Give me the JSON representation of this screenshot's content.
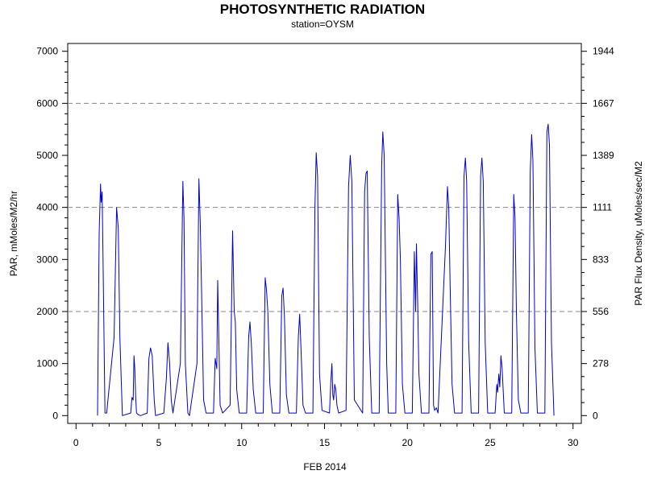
{
  "chart_data": {
    "type": "line",
    "title": "PHOTOSYNTHETIC RADIATION",
    "subtitle": "station=OYSM",
    "xlabel": "FEB 2014",
    "ylabel": "PAR, mMoles/M2/hr",
    "y2label": "PAR Flux Density, uMoles/sec/M2",
    "xlim": [
      -0.5,
      30.5
    ],
    "ylim": [
      -150,
      7150
    ],
    "x_ticks": [
      0,
      5,
      10,
      15,
      20,
      25,
      30
    ],
    "x_tick_labels": [
      "0",
      "5",
      "10",
      "15",
      "20",
      "25",
      "30"
    ],
    "y_ticks": [
      0,
      1000,
      2000,
      3000,
      4000,
      5000,
      6000,
      7000
    ],
    "y_tick_labels": [
      "0",
      "1000",
      "2000",
      "3000",
      "4000",
      "5000",
      "6000",
      "7000"
    ],
    "y2_ticks": [
      0,
      1000,
      2000,
      3000,
      4000,
      5000,
      6000,
      7000
    ],
    "y2_tick_labels": [
      "0",
      "278",
      "556",
      "833",
      "1111",
      "1389",
      "1667",
      "1944"
    ],
    "reference_lines": [
      2000,
      4000,
      6000
    ],
    "grid": false,
    "series": [
      {
        "color": "#0000cc",
        "x": [
          1.3,
          1.4,
          1.48,
          1.52,
          1.58,
          1.63,
          1.75,
          1.85,
          2.3,
          2.45,
          2.55,
          2.65,
          2.8,
          3.3,
          3.38,
          3.45,
          3.5,
          3.55,
          3.6,
          3.65,
          3.75,
          3.9,
          4.3,
          4.4,
          4.5,
          4.6,
          4.72,
          4.8,
          5.3,
          5.45,
          5.55,
          5.65,
          5.75,
          5.85,
          6.3,
          6.45,
          6.52,
          6.6,
          6.75,
          6.85,
          7.3,
          7.42,
          7.5,
          7.58,
          7.7,
          7.85,
          8.3,
          8.4,
          8.5,
          8.55,
          8.62,
          8.7,
          8.85,
          9.3,
          9.45,
          9.5,
          9.55,
          9.62,
          9.7,
          9.85,
          10.3,
          10.42,
          10.5,
          10.58,
          10.7,
          10.85,
          11.3,
          11.42,
          11.5,
          11.58,
          11.7,
          11.85,
          12.3,
          12.42,
          12.5,
          12.58,
          12.7,
          12.85,
          13.3,
          13.42,
          13.5,
          13.58,
          13.7,
          13.85,
          14.3,
          14.42,
          14.5,
          14.58,
          14.7,
          14.85,
          15.3,
          15.38,
          15.45,
          15.5,
          15.55,
          15.62,
          15.68,
          15.75,
          15.85,
          16.3,
          16.45,
          16.55,
          16.65,
          16.8,
          17.3,
          17.42,
          17.5,
          17.58,
          17.7,
          17.85,
          18.3,
          18.45,
          18.52,
          18.6,
          18.75,
          18.85,
          19.3,
          19.42,
          19.5,
          19.58,
          19.7,
          19.85,
          20.3,
          20.42,
          20.5,
          20.55,
          20.62,
          20.7,
          20.85,
          21.3,
          21.42,
          21.5,
          21.58,
          21.65,
          21.75,
          21.85,
          22.3,
          22.42,
          22.5,
          22.58,
          22.7,
          22.85,
          23.3,
          23.42,
          23.5,
          23.58,
          23.7,
          23.85,
          24.3,
          24.42,
          24.5,
          24.58,
          24.7,
          24.85,
          25.3,
          25.4,
          25.45,
          25.52,
          25.58,
          25.65,
          25.72,
          25.85,
          26.3,
          26.42,
          26.5,
          26.58,
          26.7,
          26.85,
          27.3,
          27.42,
          27.5,
          27.58,
          27.7,
          27.85,
          28.3,
          28.42,
          28.5,
          28.58,
          28.7,
          28.85
        ],
        "y": [
          0,
          3500,
          4450,
          4100,
          4300,
          3000,
          50,
          50,
          1500,
          4000,
          3600,
          1500,
          0,
          50,
          350,
          300,
          1150,
          900,
          400,
          50,
          20,
          0,
          50,
          1100,
          1300,
          1150,
          300,
          0,
          50,
          700,
          1400,
          1000,
          300,
          50,
          1000,
          4500,
          3800,
          1000,
          50,
          0,
          1000,
          4550,
          3700,
          2400,
          300,
          50,
          50,
          1100,
          900,
          2600,
          1500,
          200,
          50,
          200,
          3550,
          2800,
          2000,
          1800,
          500,
          50,
          50,
          1500,
          1800,
          1400,
          500,
          50,
          50,
          2650,
          2400,
          2000,
          600,
          50,
          50,
          2300,
          2450,
          1900,
          400,
          50,
          50,
          1500,
          1950,
          1300,
          200,
          50,
          50,
          4000,
          5050,
          4600,
          800,
          100,
          50,
          650,
          1000,
          400,
          300,
          600,
          500,
          200,
          50,
          100,
          4400,
          5000,
          4500,
          300,
          50,
          4300,
          4650,
          4700,
          1500,
          50,
          50,
          4800,
          5450,
          5000,
          1000,
          50,
          50,
          4250,
          3800,
          3000,
          600,
          50,
          50,
          3150,
          2000,
          3300,
          2200,
          800,
          50,
          50,
          3100,
          3150,
          200,
          100,
          150,
          50,
          3250,
          4400,
          4000,
          2500,
          600,
          50,
          50,
          4600,
          4950,
          4500,
          1400,
          50,
          50,
          4600,
          4950,
          4500,
          1400,
          50,
          50,
          600,
          450,
          800,
          550,
          1150,
          900,
          50,
          50,
          4250,
          3800,
          2000,
          300,
          50,
          50,
          4700,
          5400,
          4900,
          1300,
          50,
          50,
          5450,
          5600,
          5200,
          1400,
          0
        ]
      }
    ]
  }
}
